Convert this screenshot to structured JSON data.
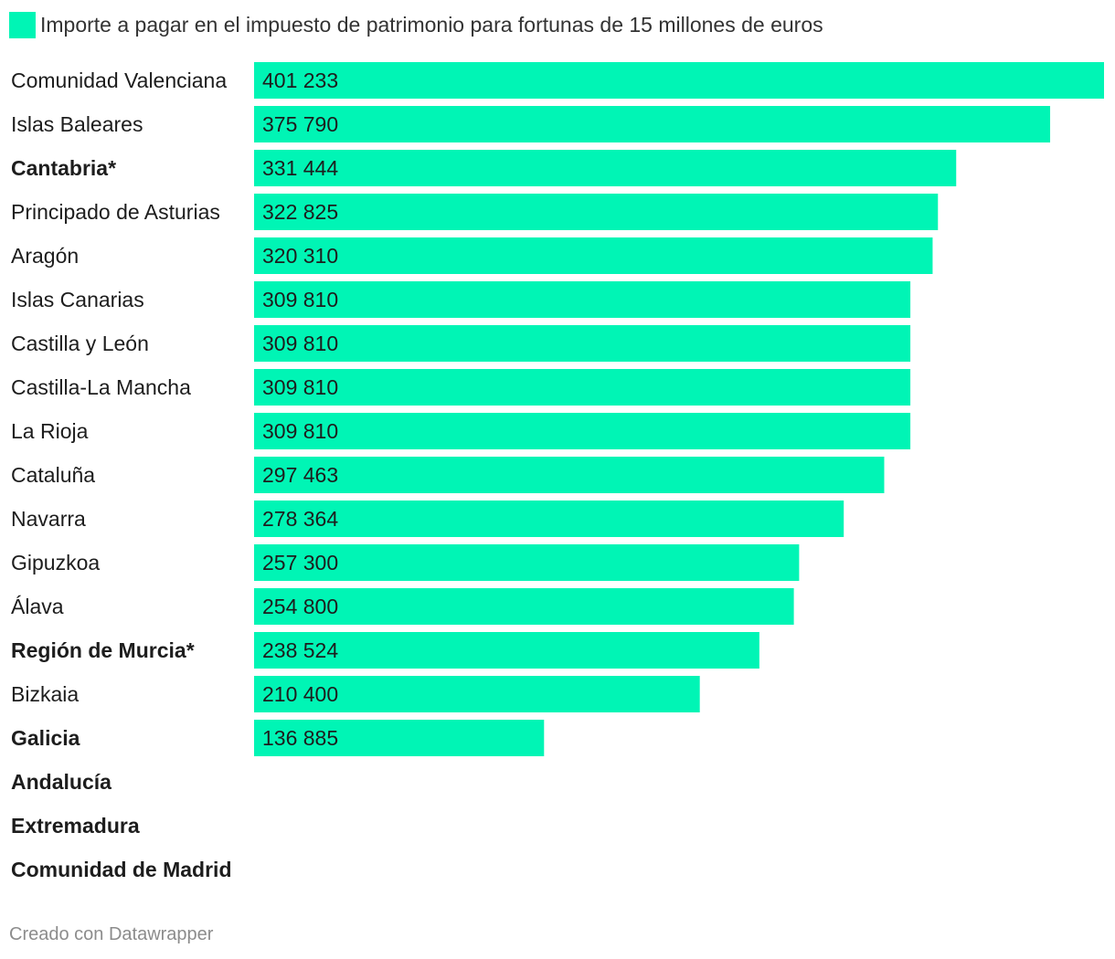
{
  "chart_data": {
    "type": "bar",
    "orientation": "horizontal",
    "series": [
      {
        "name": "Importe a pagar en el impuesto de patrimonio para fortunas de 15 millones de euros",
        "color": "#00f5b5"
      }
    ],
    "rows": [
      {
        "label": "Comunidad Valenciana",
        "value": 401233,
        "value_label": "401 233",
        "bold": false
      },
      {
        "label": "Islas Baleares",
        "value": 375790,
        "value_label": "375 790",
        "bold": false
      },
      {
        "label": "Cantabria*",
        "value": 331444,
        "value_label": "331 444",
        "bold": true
      },
      {
        "label": "Principado de Asturias",
        "value": 322825,
        "value_label": "322 825",
        "bold": false
      },
      {
        "label": "Aragón",
        "value": 320310,
        "value_label": "320 310",
        "bold": false
      },
      {
        "label": "Islas Canarias",
        "value": 309810,
        "value_label": "309 810",
        "bold": false
      },
      {
        "label": "Castilla y León",
        "value": 309810,
        "value_label": "309 810",
        "bold": false
      },
      {
        "label": "Castilla-La Mancha",
        "value": 309810,
        "value_label": "309 810",
        "bold": false
      },
      {
        "label": "La Rioja",
        "value": 309810,
        "value_label": "309 810",
        "bold": false
      },
      {
        "label": "Cataluña",
        "value": 297463,
        "value_label": "297 463",
        "bold": false
      },
      {
        "label": "Navarra",
        "value": 278364,
        "value_label": "278 364",
        "bold": false
      },
      {
        "label": "Gipuzkoa",
        "value": 257300,
        "value_label": "257 300",
        "bold": false
      },
      {
        "label": "Álava",
        "value": 254800,
        "value_label": "254 800",
        "bold": false
      },
      {
        "label": "Región de Murcia*",
        "value": 238524,
        "value_label": "238 524",
        "bold": true
      },
      {
        "label": "Bizkaia",
        "value": 210400,
        "value_label": "210 400",
        "bold": false
      },
      {
        "label": "Galicia",
        "value": 136885,
        "value_label": "136 885",
        "bold": true
      },
      {
        "label": "Andalucía",
        "value": null,
        "value_label": "",
        "bold": true
      },
      {
        "label": "Extremadura",
        "value": null,
        "value_label": "",
        "bold": true
      },
      {
        "label": "Comunidad de Madrid",
        "value": null,
        "value_label": "",
        "bold": true
      }
    ],
    "xlim": [
      0,
      401233
    ],
    "grid": false,
    "legend": "top-left"
  },
  "footer": {
    "credit": "Creado con Datawrapper"
  }
}
